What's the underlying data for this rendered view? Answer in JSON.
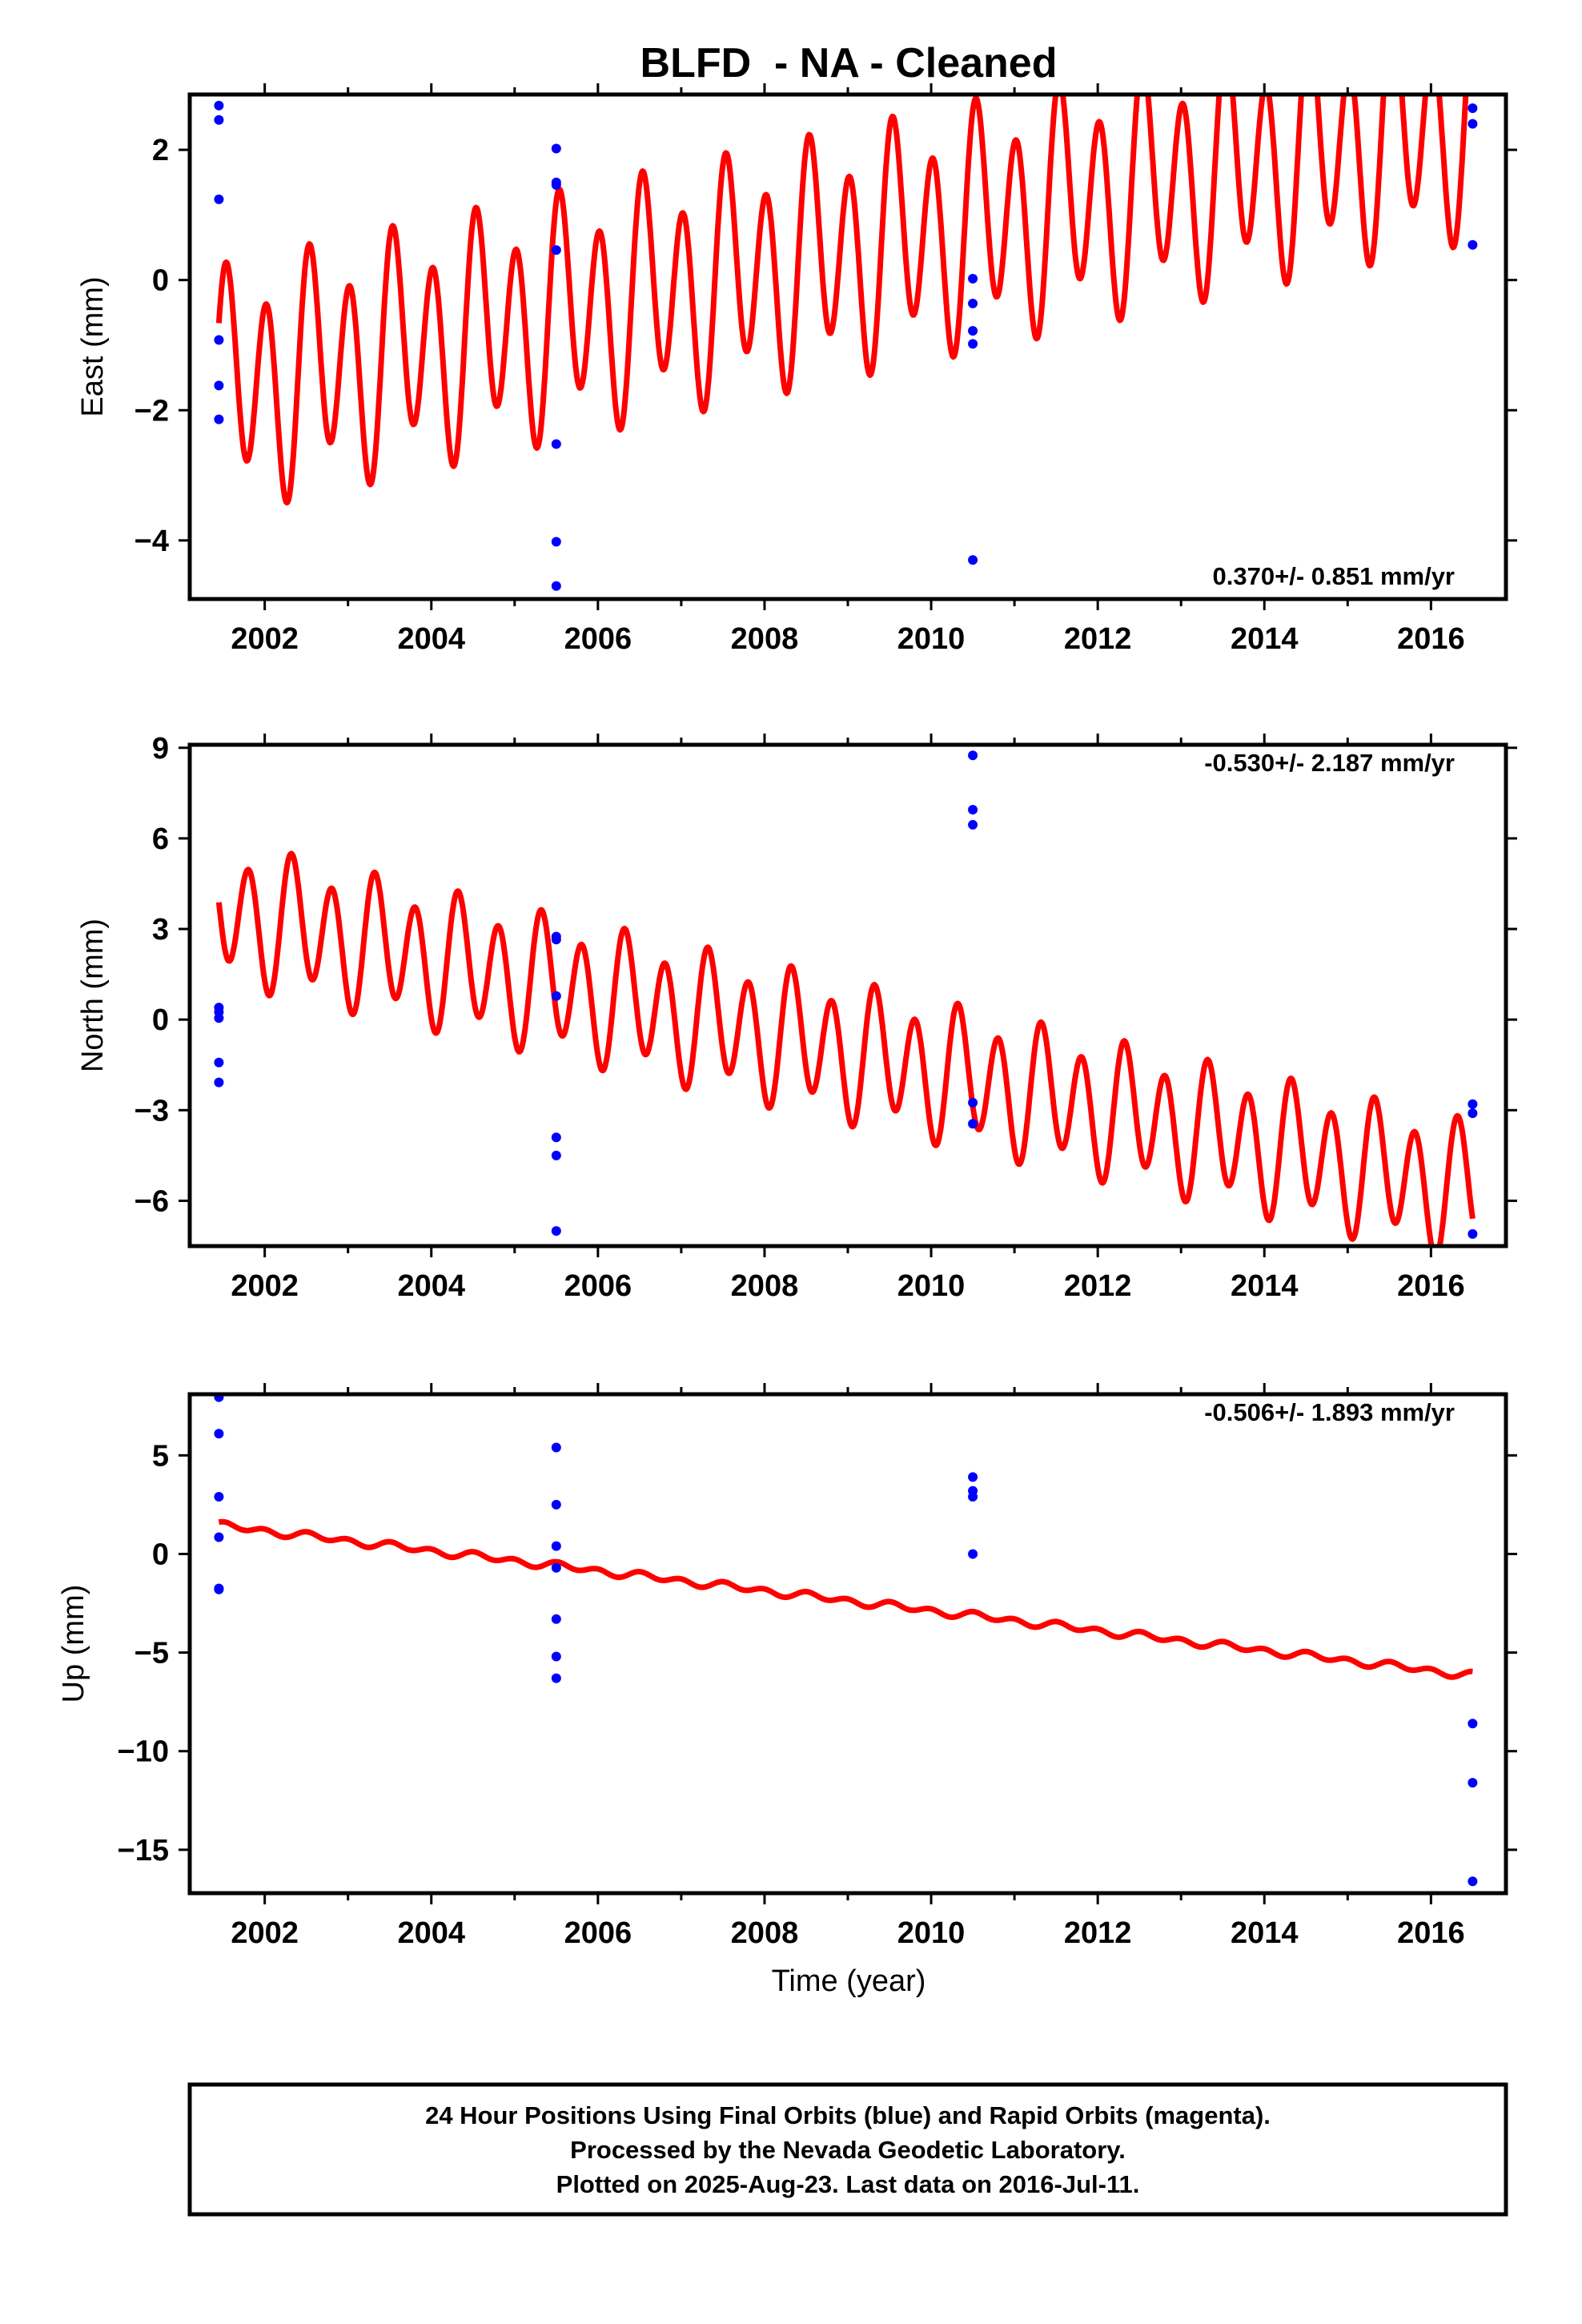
{
  "chart_data": {
    "type": "scatter",
    "title": "BLFD  - NA - Cleaned",
    "xlabel": "Time (year)",
    "xlim": [
      2001.1,
      2016.9
    ],
    "xticks": [
      2002,
      2004,
      2006,
      2008,
      2010,
      2012,
      2014,
      2016
    ],
    "colors": {
      "final_orbits": "#0000ff",
      "model": "#ff0000"
    },
    "panels": [
      {
        "ylabel": "East (mm)",
        "ylim": [
          -4.9,
          2.85
        ],
        "yticks": [
          -4,
          -2,
          0,
          2
        ],
        "rate_text": "0.370+/- 0.851 mm/yr",
        "rate_position": "bottom-right",
        "model": {
          "t0": 2001.45,
          "y0": -1.7,
          "slope": 0.37,
          "trend_override": 0.28,
          "amp1": 1.55,
          "amp2": 0.55,
          "phase": 0.6,
          "clip": true
        },
        "points": [
          {
            "x": 2001.45,
            "y": 2.68
          },
          {
            "x": 2001.45,
            "y": 2.46
          },
          {
            "x": 2001.45,
            "y": 1.24
          },
          {
            "x": 2001.45,
            "y": -0.92
          },
          {
            "x": 2001.45,
            "y": -1.62
          },
          {
            "x": 2001.45,
            "y": -2.14
          },
          {
            "x": 2005.5,
            "y": 2.02
          },
          {
            "x": 2005.5,
            "y": 1.5
          },
          {
            "x": 2005.5,
            "y": 1.46
          },
          {
            "x": 2005.5,
            "y": 0.46
          },
          {
            "x": 2005.5,
            "y": -2.52
          },
          {
            "x": 2005.5,
            "y": -4.02
          },
          {
            "x": 2005.5,
            "y": -4.7
          },
          {
            "x": 2010.5,
            "y": 0.02
          },
          {
            "x": 2010.5,
            "y": -0.36
          },
          {
            "x": 2010.5,
            "y": -0.78
          },
          {
            "x": 2010.5,
            "y": -0.98
          },
          {
            "x": 2010.5,
            "y": -4.3
          },
          {
            "x": 2016.5,
            "y": 2.64
          },
          {
            "x": 2016.5,
            "y": 2.4
          },
          {
            "x": 2016.5,
            "y": 0.54
          }
        ]
      },
      {
        "ylabel": "North (mm)",
        "ylim": [
          -7.5,
          9.1
        ],
        "yticks": [
          -6,
          -3,
          0,
          3,
          6,
          9
        ],
        "rate_text": "-0.530+/- 2.187 mm/yr",
        "rate_position": "top-right",
        "model": {
          "t0": 2001.45,
          "y0": 3.6,
          "slope": -0.53,
          "trend_override": -0.62,
          "amp1": 2.0,
          "amp2": 0.6,
          "phase": 3.3,
          "clip": true
        },
        "points": [
          {
            "x": 2001.45,
            "y": 0.4
          },
          {
            "x": 2001.45,
            "y": 0.25
          },
          {
            "x": 2001.45,
            "y": 0.05
          },
          {
            "x": 2001.45,
            "y": -1.42
          },
          {
            "x": 2001.45,
            "y": -2.08
          },
          {
            "x": 2005.5,
            "y": 2.75
          },
          {
            "x": 2005.5,
            "y": 2.65
          },
          {
            "x": 2005.5,
            "y": 0.78
          },
          {
            "x": 2005.5,
            "y": -3.9
          },
          {
            "x": 2005.5,
            "y": -4.5
          },
          {
            "x": 2005.5,
            "y": -7.0
          },
          {
            "x": 2010.5,
            "y": 8.75
          },
          {
            "x": 2010.5,
            "y": 6.95
          },
          {
            "x": 2010.5,
            "y": 6.45
          },
          {
            "x": 2010.5,
            "y": -2.75
          },
          {
            "x": 2010.5,
            "y": -3.45
          },
          {
            "x": 2016.5,
            "y": -2.8
          },
          {
            "x": 2016.5,
            "y": -3.1
          },
          {
            "x": 2016.5,
            "y": -7.1
          }
        ]
      },
      {
        "ylabel": "Up (mm)",
        "ylim": [
          -17.2,
          8.1
        ],
        "yticks": [
          -15,
          -10,
          -5,
          0,
          5
        ],
        "rate_text": "-0.506+/- 1.893 mm/yr",
        "rate_position": "top-right",
        "model": {
          "t0": 2001.45,
          "y0": 1.45,
          "slope": -0.506,
          "amp1": 0.15,
          "amp2": 0.08,
          "phase": 1.0,
          "clip": false
        },
        "points": [
          {
            "x": 2001.45,
            "y": 7.95
          },
          {
            "x": 2001.45,
            "y": 6.1
          },
          {
            "x": 2001.45,
            "y": 2.9
          },
          {
            "x": 2001.45,
            "y": 0.85
          },
          {
            "x": 2001.45,
            "y": -1.75
          },
          {
            "x": 2001.45,
            "y": -1.8
          },
          {
            "x": 2005.5,
            "y": 5.4
          },
          {
            "x": 2005.5,
            "y": 2.5
          },
          {
            "x": 2005.5,
            "y": 0.4
          },
          {
            "x": 2005.5,
            "y": -0.7
          },
          {
            "x": 2005.5,
            "y": -3.3
          },
          {
            "x": 2005.5,
            "y": -5.2
          },
          {
            "x": 2005.5,
            "y": -6.3
          },
          {
            "x": 2010.5,
            "y": 3.9
          },
          {
            "x": 2010.5,
            "y": 3.2
          },
          {
            "x": 2010.5,
            "y": 2.9
          },
          {
            "x": 2010.5,
            "y": 0.0
          },
          {
            "x": 2016.5,
            "y": -8.6
          },
          {
            "x": 2016.5,
            "y": -11.6
          },
          {
            "x": 2016.5,
            "y": -16.6
          }
        ]
      }
    ],
    "footer": [
      "24 Hour Positions Using Final Orbits (blue) and Rapid Orbits (magenta).",
      "Processed by the Nevada Geodetic Laboratory.",
      "Plotted on 2025-Aug-23. Last data on 2016-Jul-11."
    ]
  }
}
